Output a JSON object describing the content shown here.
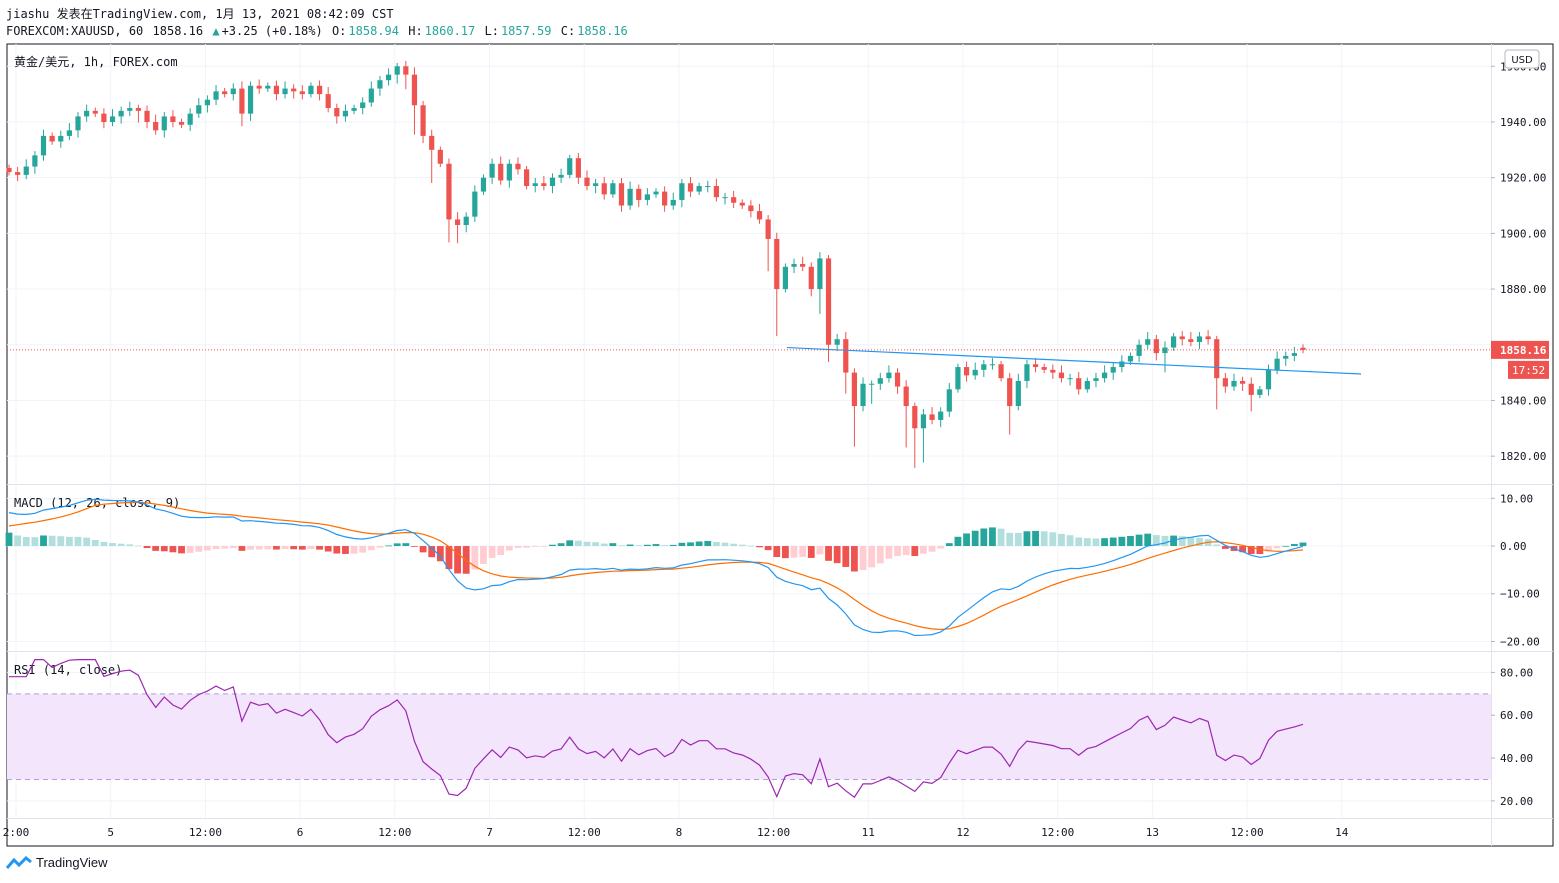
{
  "header": {
    "line1": "jiashu 发表在TradingView.com, 1月 13, 2021 08:42:09 CST",
    "symbol": "FOREXCOM:XAUUSD, 60",
    "last": "1858.16",
    "change": "+3.25 (+0.18%)",
    "o_label": "O:",
    "o": "1858.94",
    "h_label": "H:",
    "h": "1860.17",
    "l_label": "L:",
    "l": "1857.59",
    "c_label": "C:",
    "c": "1858.16"
  },
  "pane_title": "黄金/美元, 1h, FOREX.com",
  "currency_button": "USD",
  "brand": "TradingView",
  "colors": {
    "up": "#26a69a",
    "down": "#ef5350",
    "macd": "#2196f3",
    "signal": "#ff6d00",
    "rsi": "#9c27b0",
    "rsi_band": "#f3e5fc",
    "trend": "#2196f3"
  },
  "chart_data": [
    {
      "type": "candlestick",
      "title": "黄金/美元, 1h, FOREX.com",
      "ylim": [
        1810,
        1968
      ],
      "y_ticks": [
        "1960.00",
        "1940.00",
        "1920.00",
        "1900.00",
        "1880.00",
        "1860.00",
        "1840.00",
        "1820.00"
      ],
      "x_ticks": [
        "2:00",
        "5",
        "12:00",
        "6",
        "12:00",
        "7",
        "12:00",
        "8",
        "12:00",
        "11",
        "12",
        "12:00",
        "13",
        "12:00",
        "14"
      ],
      "last_price_label": "1858.16",
      "countdown_label": "17:52",
      "last_price": 1858.16,
      "trendline": {
        "from": 1859,
        "to": 1849.5
      },
      "closes": [
        1922,
        1921,
        1924,
        1928,
        1935,
        1933,
        1935,
        1937,
        1942,
        1944,
        1943,
        1940,
        1942,
        1944,
        1945,
        1944,
        1940,
        1937,
        1942,
        1940,
        1939,
        1943,
        1946,
        1948,
        1951,
        1950,
        1952,
        1943,
        1953,
        1952,
        1953,
        1950,
        1952,
        1951,
        1950,
        1953,
        1950,
        1945,
        1942,
        1944,
        1945,
        1947,
        1952,
        1955,
        1957,
        1960,
        1957,
        1946,
        1935,
        1930,
        1925,
        1905,
        1903,
        1906,
        1915,
        1920,
        1925,
        1919,
        1925,
        1923,
        1917,
        1918,
        1917,
        1920,
        1921,
        1927,
        1920,
        1917,
        1918,
        1914,
        1918,
        1910,
        1916,
        1912,
        1914,
        1915,
        1910,
        1912,
        1918,
        1915,
        1917,
        1917,
        1913,
        1913,
        1911,
        1910,
        1908,
        1905,
        1898,
        1880,
        1888,
        1889,
        1888,
        1880,
        1891,
        1860,
        1862,
        1850,
        1838,
        1846,
        1846,
        1848,
        1850,
        1845,
        1838,
        1830,
        1835,
        1833,
        1836,
        1844,
        1852,
        1849,
        1851,
        1853,
        1853,
        1848,
        1838,
        1847,
        1853,
        1852,
        1851,
        1850,
        1848,
        1848,
        1844,
        1847,
        1848,
        1850,
        1852,
        1854,
        1856,
        1860,
        1862,
        1857,
        1859,
        1863,
        1862,
        1861,
        1863,
        1862,
        1848,
        1845,
        1847,
        1846,
        1842,
        1844,
        1851,
        1855,
        1856,
        1857,
        1858.16
      ]
    },
    {
      "type": "line",
      "title": "MACD (12, 26, close, 9)",
      "ylim": [
        -22,
        13
      ],
      "y_ticks": [
        "10.00",
        "0.00",
        "−10.00",
        "−20.00"
      ],
      "series": [
        {
          "name": "MACD"
        },
        {
          "name": "Signal"
        },
        {
          "name": "Histogram"
        }
      ]
    },
    {
      "type": "line",
      "title": "RSI (14, close)",
      "ylim": [
        12,
        90
      ],
      "y_ticks": [
        "80.00",
        "60.00",
        "40.00",
        "20.00"
      ],
      "band": [
        30,
        70
      ]
    }
  ]
}
